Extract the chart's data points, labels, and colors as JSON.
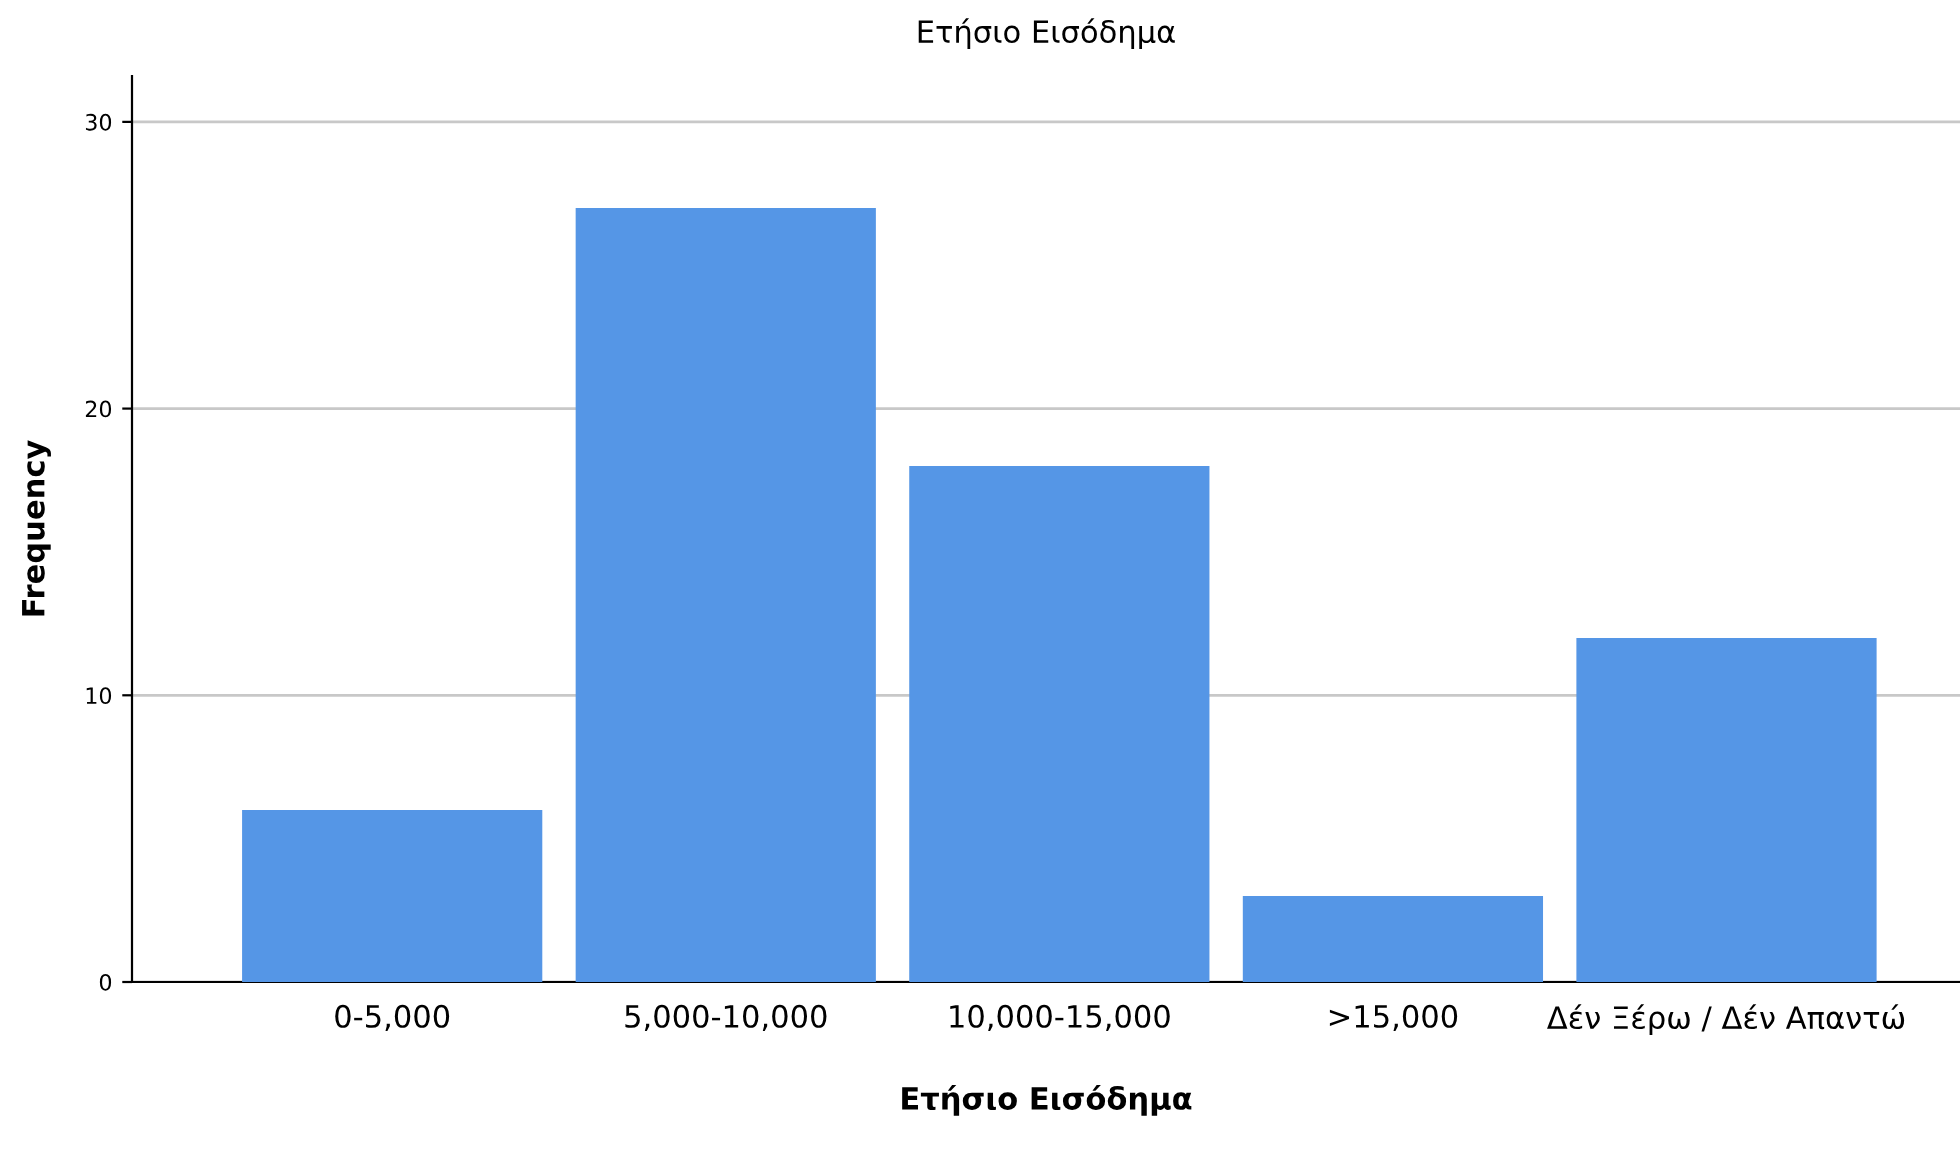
{
  "chart_data": {
    "type": "bar",
    "title": "Ετήσιο Εισόδημα",
    "xlabel": "Ετήσιο Εισόδημα",
    "ylabel": "Frequency",
    "categories": [
      "0-5,000",
      "5,000-10,000",
      "10,000-15,000",
      ">15,000",
      "Δέν Ξέρω / Δέν Απαντώ"
    ],
    "values": [
      6,
      27,
      18,
      3,
      12
    ],
    "color": "#5596e6",
    "ylim": [
      0,
      31.6
    ],
    "yticks": [
      0,
      10,
      20,
      30
    ],
    "grid": "y",
    "legend": false
  }
}
